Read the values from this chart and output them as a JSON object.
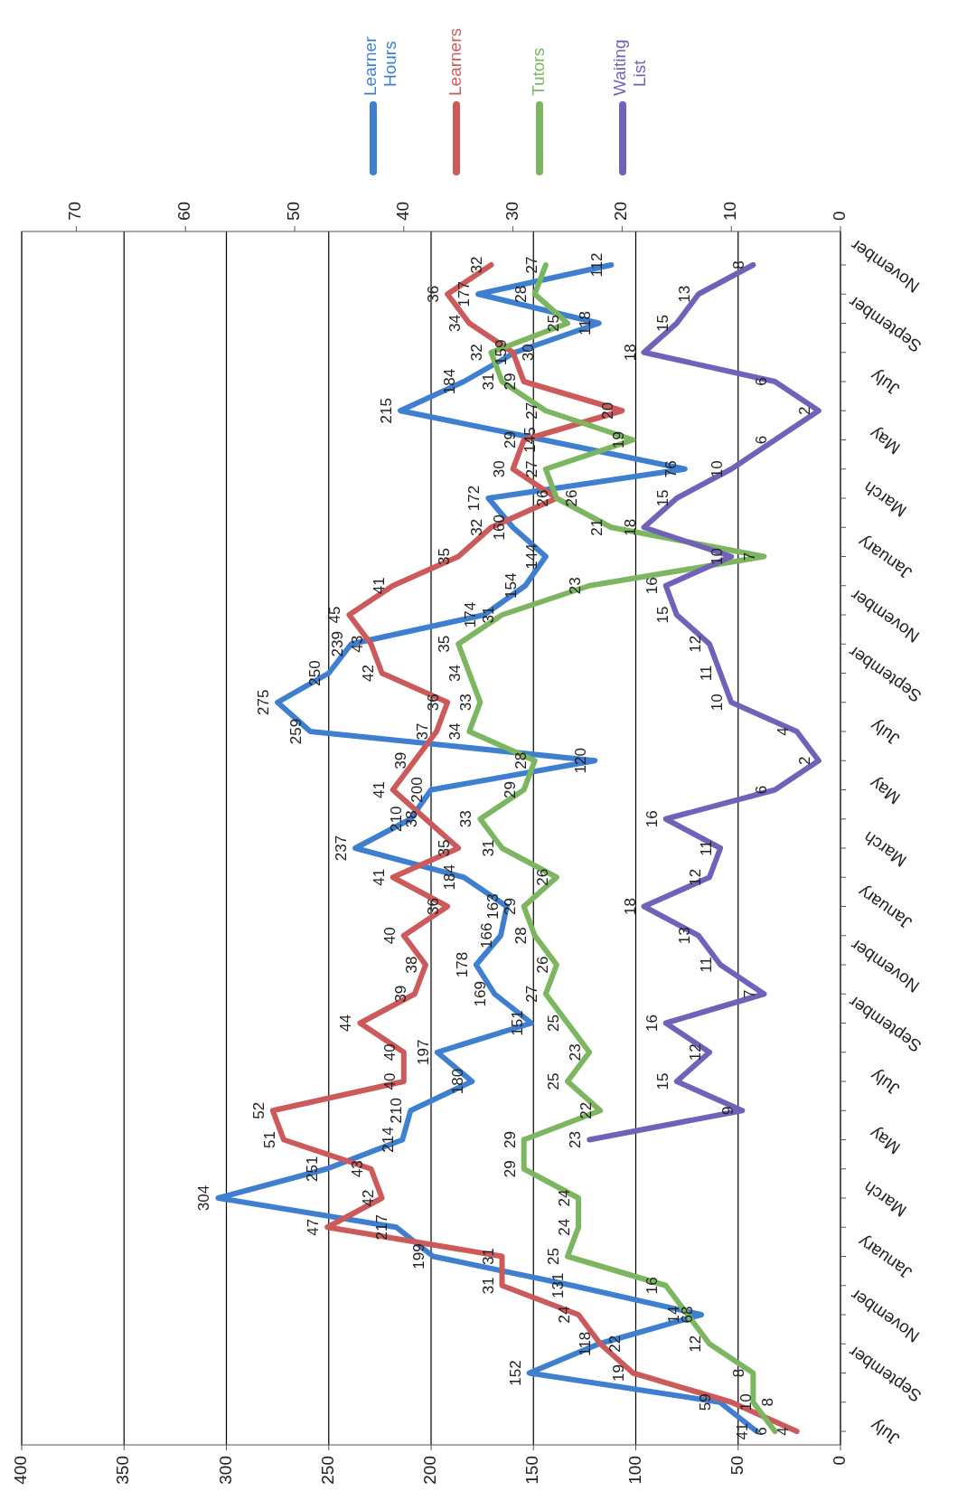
{
  "chart_data": {
    "type": "line",
    "orientation": "horizontal",
    "categories": [
      "November",
      null,
      "September",
      null,
      "July",
      null,
      "May",
      null,
      "March",
      null,
      "January",
      null,
      "November",
      null,
      "September",
      null,
      "July",
      null,
      "May",
      null,
      "March",
      null,
      "January",
      null,
      "November",
      null,
      "September",
      null,
      "July",
      null,
      "May",
      null,
      "March",
      null,
      "January",
      null,
      "November",
      null,
      "September",
      null,
      "July"
    ],
    "series": [
      {
        "name": "Learner Hours",
        "color": "#3f7fcf",
        "values": [
          112,
          177,
          118,
          159,
          184,
          215,
          145,
          76,
          172,
          160,
          144,
          154,
          174,
          239,
          250,
          275,
          259,
          120,
          200,
          210,
          237,
          184,
          163,
          166,
          178,
          169,
          151,
          197,
          180,
          210,
          214,
          251,
          304,
          217,
          199,
          131,
          68,
          118,
          152,
          59,
          41
        ]
      },
      {
        "name": "Learners",
        "color": "#cc5a5a",
        "axis": "x2",
        "values": [
          32,
          36,
          34,
          30,
          29,
          20,
          29,
          30,
          26,
          32,
          35,
          41,
          45,
          43,
          42,
          36,
          37,
          39,
          41,
          38,
          35,
          41,
          36,
          40,
          38,
          39,
          44,
          40,
          40,
          52,
          51,
          43,
          42,
          47,
          31,
          31,
          24,
          22,
          19,
          10,
          4
        ]
      },
      {
        "name": "Tutors",
        "color": "#7db660",
        "axis": "x2",
        "values": [
          27,
          28,
          25,
          32,
          31,
          27,
          19,
          27,
          26,
          21,
          7,
          23,
          31,
          35,
          34,
          33,
          34,
          28,
          29,
          33,
          31,
          26,
          29,
          28,
          26,
          27,
          25,
          23,
          25,
          22,
          29,
          29,
          24,
          24,
          25,
          16,
          14,
          12,
          8,
          8,
          6
        ]
      },
      {
        "name": "Waiting List",
        "color": "#6f62b8",
        "axis": "x2",
        "values": [
          8,
          13,
          15,
          18,
          6,
          2,
          6,
          10,
          15,
          18,
          10,
          16,
          15,
          12,
          11,
          10,
          4,
          2,
          6,
          16,
          11,
          12,
          18,
          13,
          11,
          7,
          16,
          12,
          15,
          9,
          23,
          null,
          null,
          null,
          null,
          null,
          null,
          null,
          null,
          null,
          null
        ]
      }
    ],
    "xlim": [
      400,
      0
    ],
    "xticks": [
      400,
      350,
      300,
      250,
      200,
      150,
      100,
      50,
      0
    ],
    "x2lim": [
      75,
      0
    ],
    "x2ticks": [
      70,
      60,
      50,
      40,
      30,
      20,
      10,
      0
    ],
    "grid": "x",
    "legend": "top",
    "marker": "none",
    "data_labels": true
  }
}
